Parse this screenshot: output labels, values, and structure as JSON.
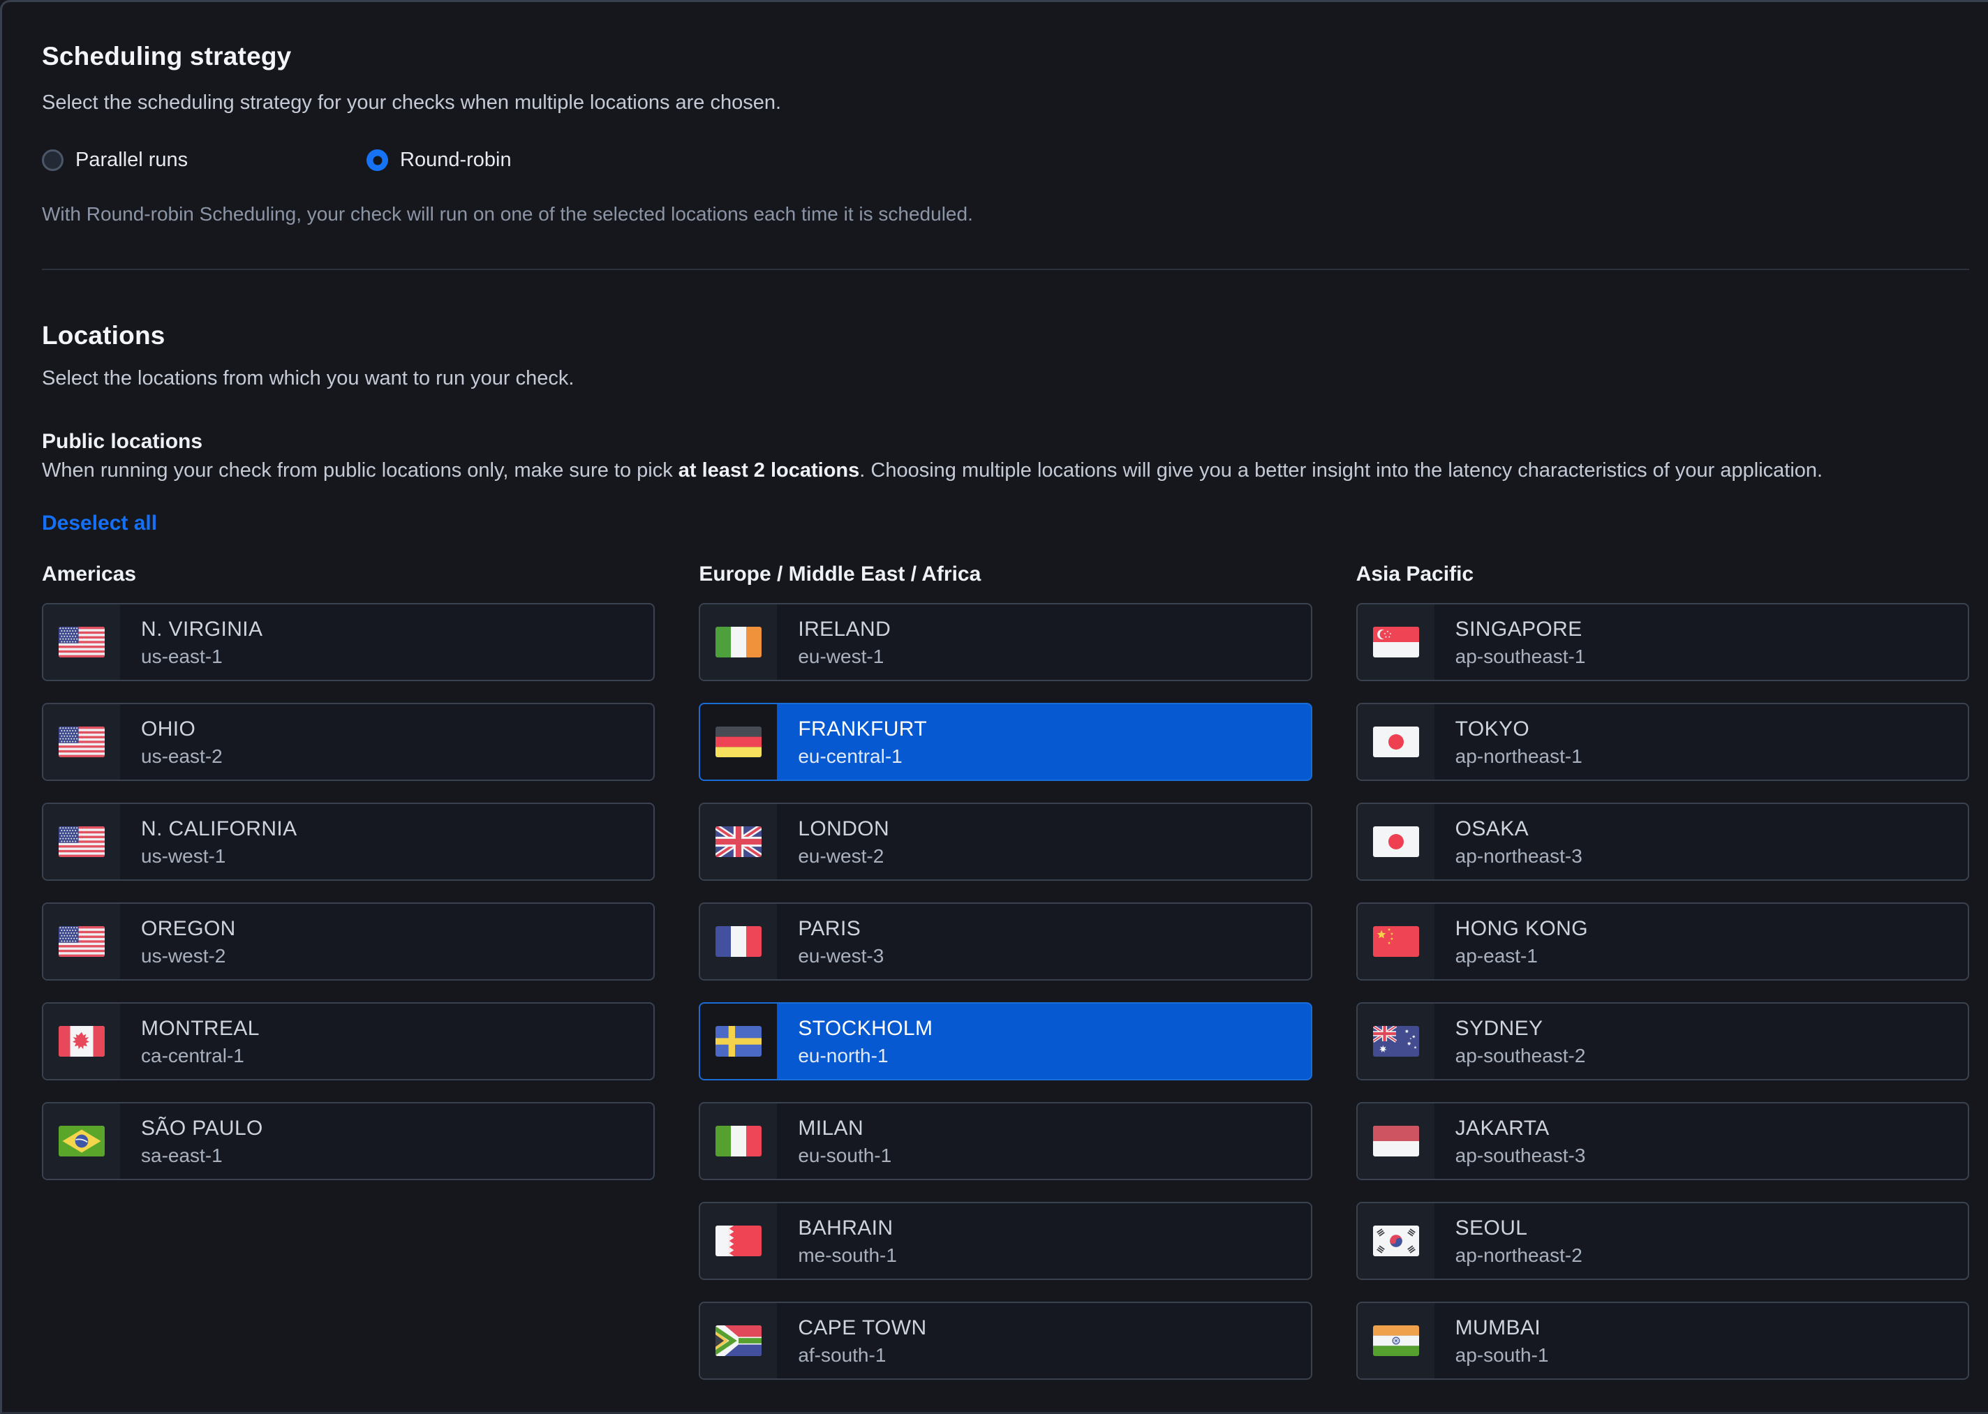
{
  "scheduling": {
    "title": "Scheduling strategy",
    "description": "Select the scheduling strategy for your checks when multiple locations are chosen.",
    "options": [
      {
        "label": "Parallel runs",
        "selected": false
      },
      {
        "label": "Round-robin",
        "selected": true
      }
    ],
    "helper": "With Round-robin Scheduling, your check will run on one of the selected locations each time it is scheduled."
  },
  "locations": {
    "title": "Locations",
    "description": "Select the locations from which you want to run your check.",
    "public": {
      "title": "Public locations",
      "note_prefix": "When running your check from public locations only, make sure to pick ",
      "note_bold": "at least 2 locations",
      "note_suffix": ". Choosing multiple locations will give you a better insight into the latency characteristics of your application."
    },
    "deselect_all_label": "Deselect all",
    "columns": [
      {
        "header": "Americas",
        "items": [
          {
            "city": "N. VIRGINIA",
            "region": "us-east-1",
            "flag": "us",
            "selected": false
          },
          {
            "city": "OHIO",
            "region": "us-east-2",
            "flag": "us",
            "selected": false
          },
          {
            "city": "N. CALIFORNIA",
            "region": "us-west-1",
            "flag": "us",
            "selected": false
          },
          {
            "city": "OREGON",
            "region": "us-west-2",
            "flag": "us",
            "selected": false
          },
          {
            "city": "MONTREAL",
            "region": "ca-central-1",
            "flag": "ca",
            "selected": false
          },
          {
            "city": "SÃO PAULO",
            "region": "sa-east-1",
            "flag": "br",
            "selected": false
          }
        ]
      },
      {
        "header": "Europe / Middle East / Africa",
        "items": [
          {
            "city": "IRELAND",
            "region": "eu-west-1",
            "flag": "ie",
            "selected": false
          },
          {
            "city": "FRANKFURT",
            "region": "eu-central-1",
            "flag": "de",
            "selected": true
          },
          {
            "city": "LONDON",
            "region": "eu-west-2",
            "flag": "gb",
            "selected": false
          },
          {
            "city": "PARIS",
            "region": "eu-west-3",
            "flag": "fr",
            "selected": false
          },
          {
            "city": "STOCKHOLM",
            "region": "eu-north-1",
            "flag": "se",
            "selected": true
          },
          {
            "city": "MILAN",
            "region": "eu-south-1",
            "flag": "it",
            "selected": false
          },
          {
            "city": "BAHRAIN",
            "region": "me-south-1",
            "flag": "bh",
            "selected": false
          },
          {
            "city": "CAPE TOWN",
            "region": "af-south-1",
            "flag": "za",
            "selected": false
          }
        ]
      },
      {
        "header": "Asia Pacific",
        "items": [
          {
            "city": "SINGAPORE",
            "region": "ap-southeast-1",
            "flag": "sg",
            "selected": false
          },
          {
            "city": "TOKYO",
            "region": "ap-northeast-1",
            "flag": "jp",
            "selected": false
          },
          {
            "city": "OSAKA",
            "region": "ap-northeast-3",
            "flag": "jp",
            "selected": false
          },
          {
            "city": "HONG KONG",
            "region": "ap-east-1",
            "flag": "cn",
            "selected": false
          },
          {
            "city": "SYDNEY",
            "region": "ap-southeast-2",
            "flag": "au",
            "selected": false
          },
          {
            "city": "JAKARTA",
            "region": "ap-southeast-3",
            "flag": "id",
            "selected": false
          },
          {
            "city": "SEOUL",
            "region": "ap-northeast-2",
            "flag": "kr",
            "selected": false
          },
          {
            "city": "MUMBAI",
            "region": "ap-south-1",
            "flag": "in",
            "selected": false
          }
        ]
      }
    ]
  },
  "colors": {
    "selected_card_blue": "#0659d0",
    "radio_blue": "#1673f5",
    "link_blue": "#1670f5",
    "card_border": "#3a4250",
    "page_background": "#15171d"
  }
}
